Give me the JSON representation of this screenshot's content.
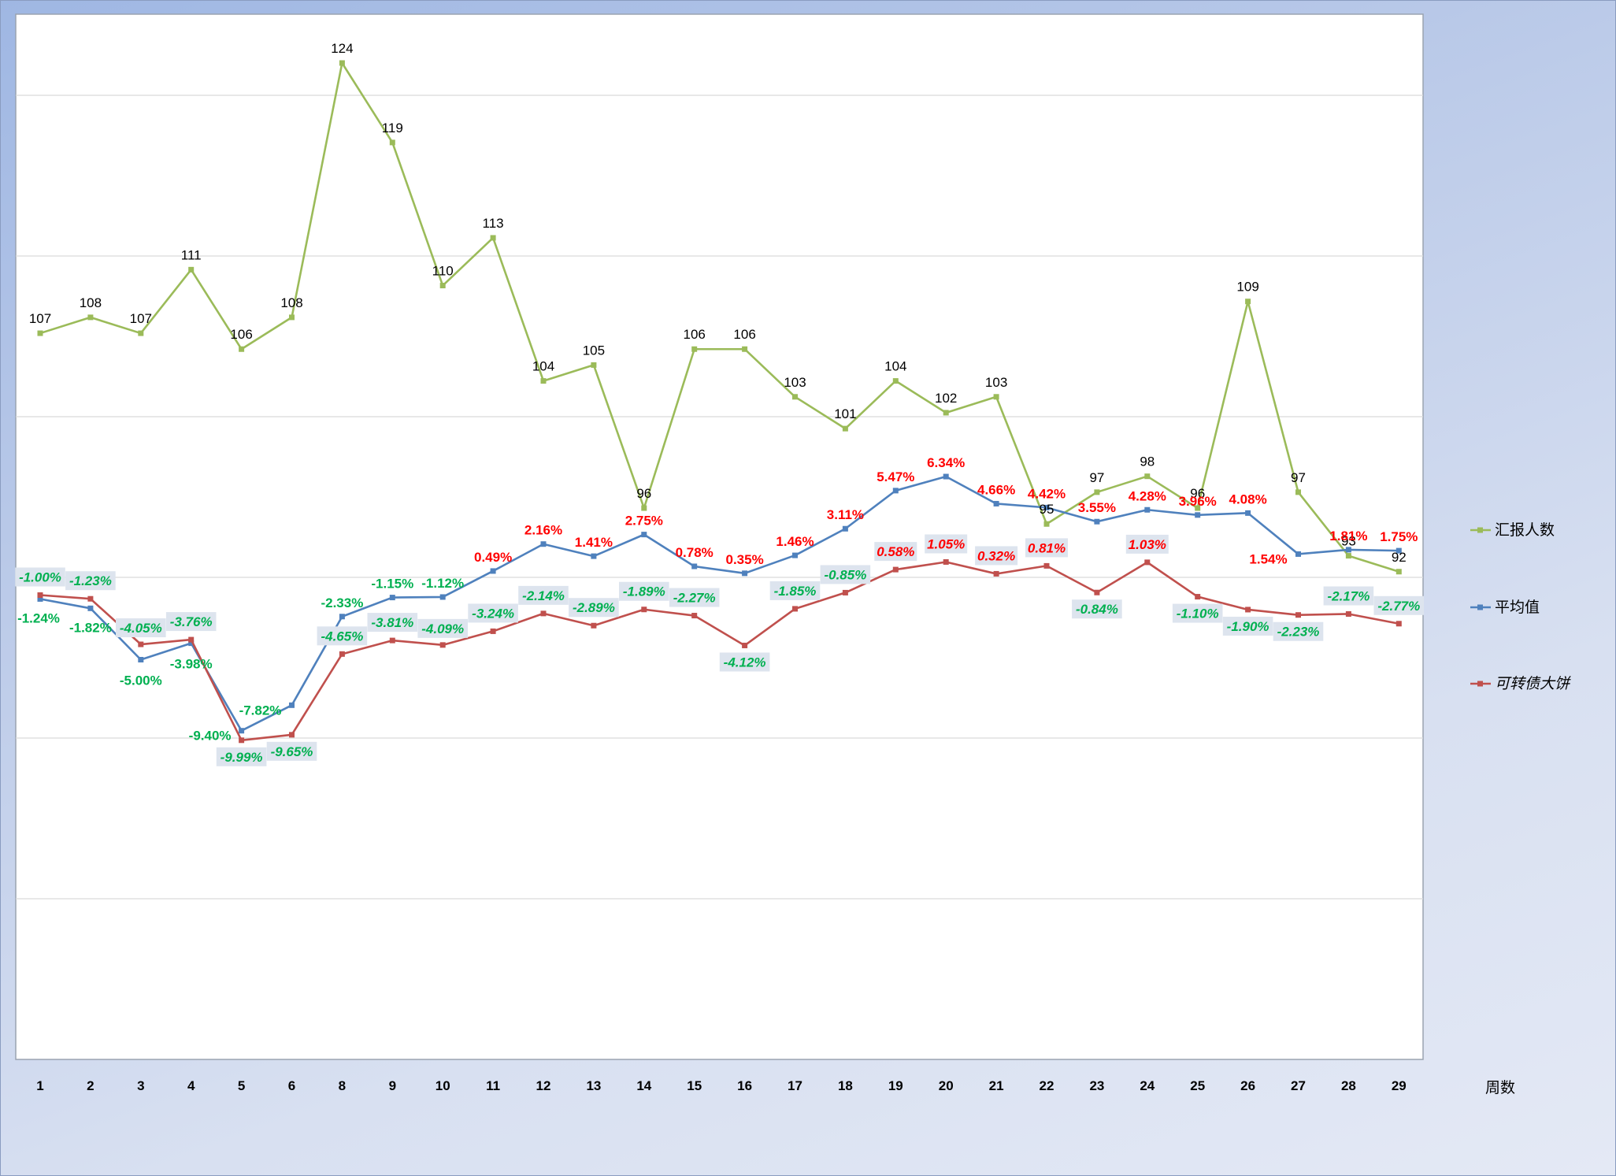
{
  "chart_data": {
    "type": "line",
    "xlabel": "周数",
    "categories": [
      "1",
      "2",
      "3",
      "4",
      "5",
      "6",
      "8",
      "9",
      "10",
      "11",
      "12",
      "13",
      "14",
      "15",
      "16",
      "17",
      "18",
      "19",
      "20",
      "21",
      "22",
      "23",
      "24",
      "25",
      "26",
      "27",
      "28",
      "29"
    ],
    "series": [
      {
        "name": "汇报人数",
        "color": "#9bbb59",
        "values": [
          107,
          108,
          107,
          111,
          106,
          108,
          124,
          119,
          110,
          113,
          104,
          105,
          96,
          106,
          106,
          103,
          101,
          104,
          102,
          103,
          95,
          97,
          98,
          96,
          109,
          97,
          93,
          92
        ],
        "labels": [
          "107",
          "108",
          "107",
          "111",
          "106",
          "108",
          "124",
          "119",
          "110",
          "113",
          "104",
          "105",
          "96",
          "106",
          "106",
          "103",
          "101",
          "104",
          "102",
          "103",
          "95",
          "97",
          "98",
          "96",
          "109",
          "97",
          "93",
          "92"
        ]
      },
      {
        "name": "平均值",
        "color": "#4f81bd",
        "values": [
          -1.24,
          -1.82,
          -5.0,
          -3.98,
          -9.4,
          -7.82,
          -2.33,
          -1.15,
          -1.12,
          0.49,
          2.16,
          1.41,
          2.75,
          0.78,
          0.35,
          1.46,
          3.11,
          5.47,
          6.34,
          4.66,
          4.42,
          3.55,
          4.28,
          3.96,
          4.08,
          1.54,
          1.81,
          1.75
        ],
        "labels": [
          "-1.24%",
          "-1.82%",
          "-5.00%",
          "-3.98%",
          "-9.40%",
          "-7.82%",
          "-2.33%",
          "-1.15%",
          "-1.12%",
          "0.49%",
          "2.16%",
          "1.41%",
          "2.75%",
          "0.78%",
          "0.35%",
          "1.46%",
          "3.11%",
          "5.47%",
          "6.34%",
          "4.66%",
          "4.42%",
          "3.55%",
          "4.28%",
          "3.96%",
          "4.08%",
          "1.54%",
          "1.81%",
          "1.75%"
        ]
      },
      {
        "name": "可转债大饼",
        "color": "#c0504d",
        "values": [
          -1.0,
          -1.23,
          -4.05,
          -3.76,
          -9.99,
          -9.65,
          -4.65,
          -3.81,
          -4.09,
          -3.24,
          -2.14,
          -2.89,
          -1.89,
          -2.27,
          -4.12,
          -1.85,
          -0.85,
          0.58,
          1.05,
          0.32,
          0.81,
          -0.84,
          1.03,
          -1.1,
          -1.9,
          -2.23,
          -2.17,
          -2.77
        ],
        "labels": [
          "-1.00%",
          "-1.23%",
          "-4.05%",
          "-3.76%",
          "-9.99%",
          "-9.65%",
          "-4.65%",
          "-3.81%",
          "-4.09%",
          "-3.24%",
          "-2.14%",
          "-2.89%",
          "-1.89%",
          "-2.27%",
          "-4.12%",
          "-1.85%",
          "-0.85%",
          "0.58%",
          "1.05%",
          "0.32%",
          "0.81%",
          "-0.84%",
          "1.03%",
          "-1.10%",
          "-1.90%",
          "-2.23%",
          "-2.17%",
          "-2.77%"
        ]
      }
    ],
    "positive_label_color": "#ff0000",
    "negative_label_color": "#00b050",
    "grid": true,
    "legend_position": "right"
  }
}
